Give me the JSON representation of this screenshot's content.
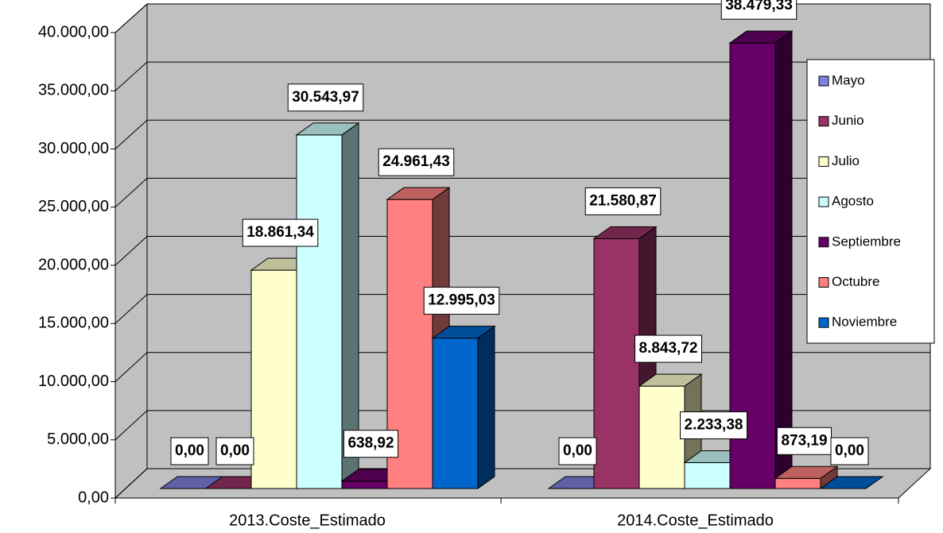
{
  "chart_data": {
    "type": "bar3d",
    "categories": [
      "2013.Coste_Estimado",
      "2014.Coste_Estimado"
    ],
    "ylim": [
      0,
      40000
    ],
    "yticks": [
      {
        "value": 0,
        "label": "0,00"
      },
      {
        "value": 5000,
        "label": "5.000,00"
      },
      {
        "value": 10000,
        "label": "10.000,00"
      },
      {
        "value": 15000,
        "label": "15.000,00"
      },
      {
        "value": 20000,
        "label": "20.000,00"
      },
      {
        "value": 25000,
        "label": "25.000,00"
      },
      {
        "value": 30000,
        "label": "30.000,00"
      },
      {
        "value": 35000,
        "label": "35.000,00"
      },
      {
        "value": 40000,
        "label": "40.000,00"
      }
    ],
    "grid": true,
    "legend": "right",
    "series": [
      {
        "name": "Mayo",
        "color": "#8080e0",
        "label_color": "#9999ff",
        "values": [
          0,
          0
        ],
        "value_labels": [
          "0,00",
          "0,00"
        ]
      },
      {
        "name": "Junio",
        "color": "#993366",
        "label_color": "#993366",
        "values": [
          0,
          21580.87
        ],
        "value_labels": [
          "0,00",
          "21.580,87"
        ]
      },
      {
        "name": "Julio",
        "color": "#ffffcc",
        "label_color": "#000000",
        "values": [
          18861.34,
          8843.72
        ],
        "value_labels": [
          "18.861,34",
          "8.843,72"
        ]
      },
      {
        "name": "Agosto",
        "color": "#ccffff",
        "label_color": "#000000",
        "values": [
          30543.97,
          2233.38
        ],
        "value_labels": [
          "30.543,97",
          "2.233,38"
        ]
      },
      {
        "name": "Septiembre",
        "color": "#660066",
        "label_color": "#993366",
        "values": [
          638.92,
          38479.33
        ],
        "value_labels": [
          "638,92",
          "38.479,33"
        ]
      },
      {
        "name": "Octubre",
        "color": "#ff8080",
        "label_color": "#ff8080",
        "values": [
          24961.43,
          873.19
        ],
        "value_labels": [
          "24.961,43",
          "873,19"
        ]
      },
      {
        "name": "Noviembre",
        "color": "#0066cc",
        "label_color": "#0066cc",
        "values": [
          12995.03,
          0
        ],
        "value_labels": [
          "12.995,03",
          "0,00"
        ]
      }
    ]
  }
}
